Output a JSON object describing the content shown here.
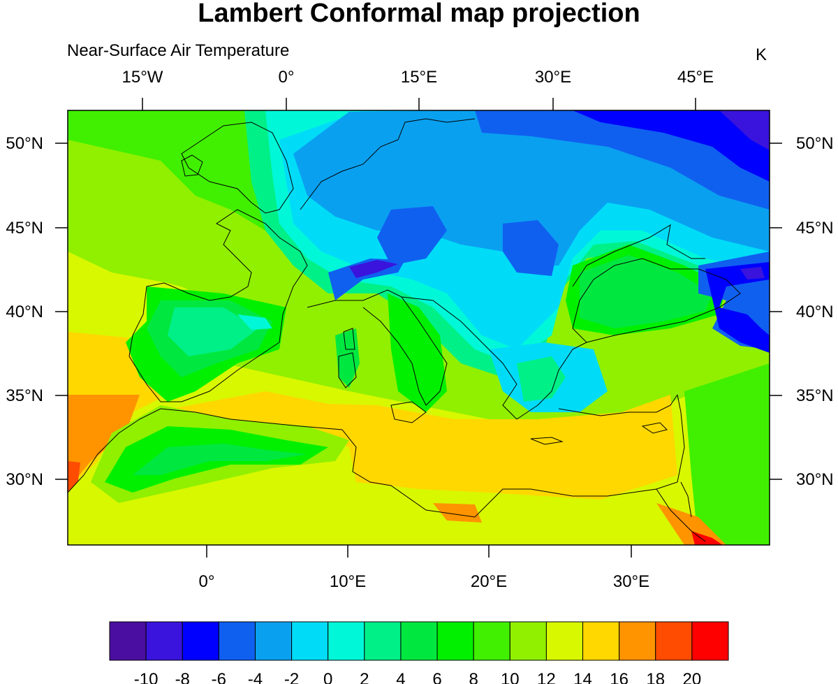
{
  "title": "Lambert Conformal map projection",
  "subtitle": "Near-Surface Air Temperature",
  "units": "K",
  "top_axis_labels": [
    "15°W",
    "0°",
    "15°E",
    "30°E",
    "45°E"
  ],
  "bottom_axis_labels": [
    "0°",
    "10°E",
    "20°E",
    "30°E"
  ],
  "left_axis_labels": [
    "50°N",
    "45°N",
    "40°N",
    "35°N",
    "30°N"
  ],
  "right_axis_labels": [
    "50°N",
    "45°N",
    "40°N",
    "35°N",
    "30°N"
  ],
  "colorbar": {
    "labels": [
      "-10",
      "-8",
      "-6",
      "-4",
      "-2",
      "0",
      "2",
      "4",
      "6",
      "8",
      "10",
      "12",
      "14",
      "16",
      "18",
      "20"
    ],
    "colors": [
      "#4a0fa0",
      "#3a14dc",
      "#0000ff",
      "#1060f0",
      "#0aa0f0",
      "#00dcf8",
      "#00f8d8",
      "#00f088",
      "#00e840",
      "#00f000",
      "#40f000",
      "#90f000",
      "#d8f800",
      "#ffd800",
      "#ff9400",
      "#ff4c00",
      "#ff0000"
    ]
  },
  "map": {
    "field": "Near-Surface Air Temperature",
    "projection": "Lambert Conformal",
    "region": "Europe and Mediterranean"
  }
}
